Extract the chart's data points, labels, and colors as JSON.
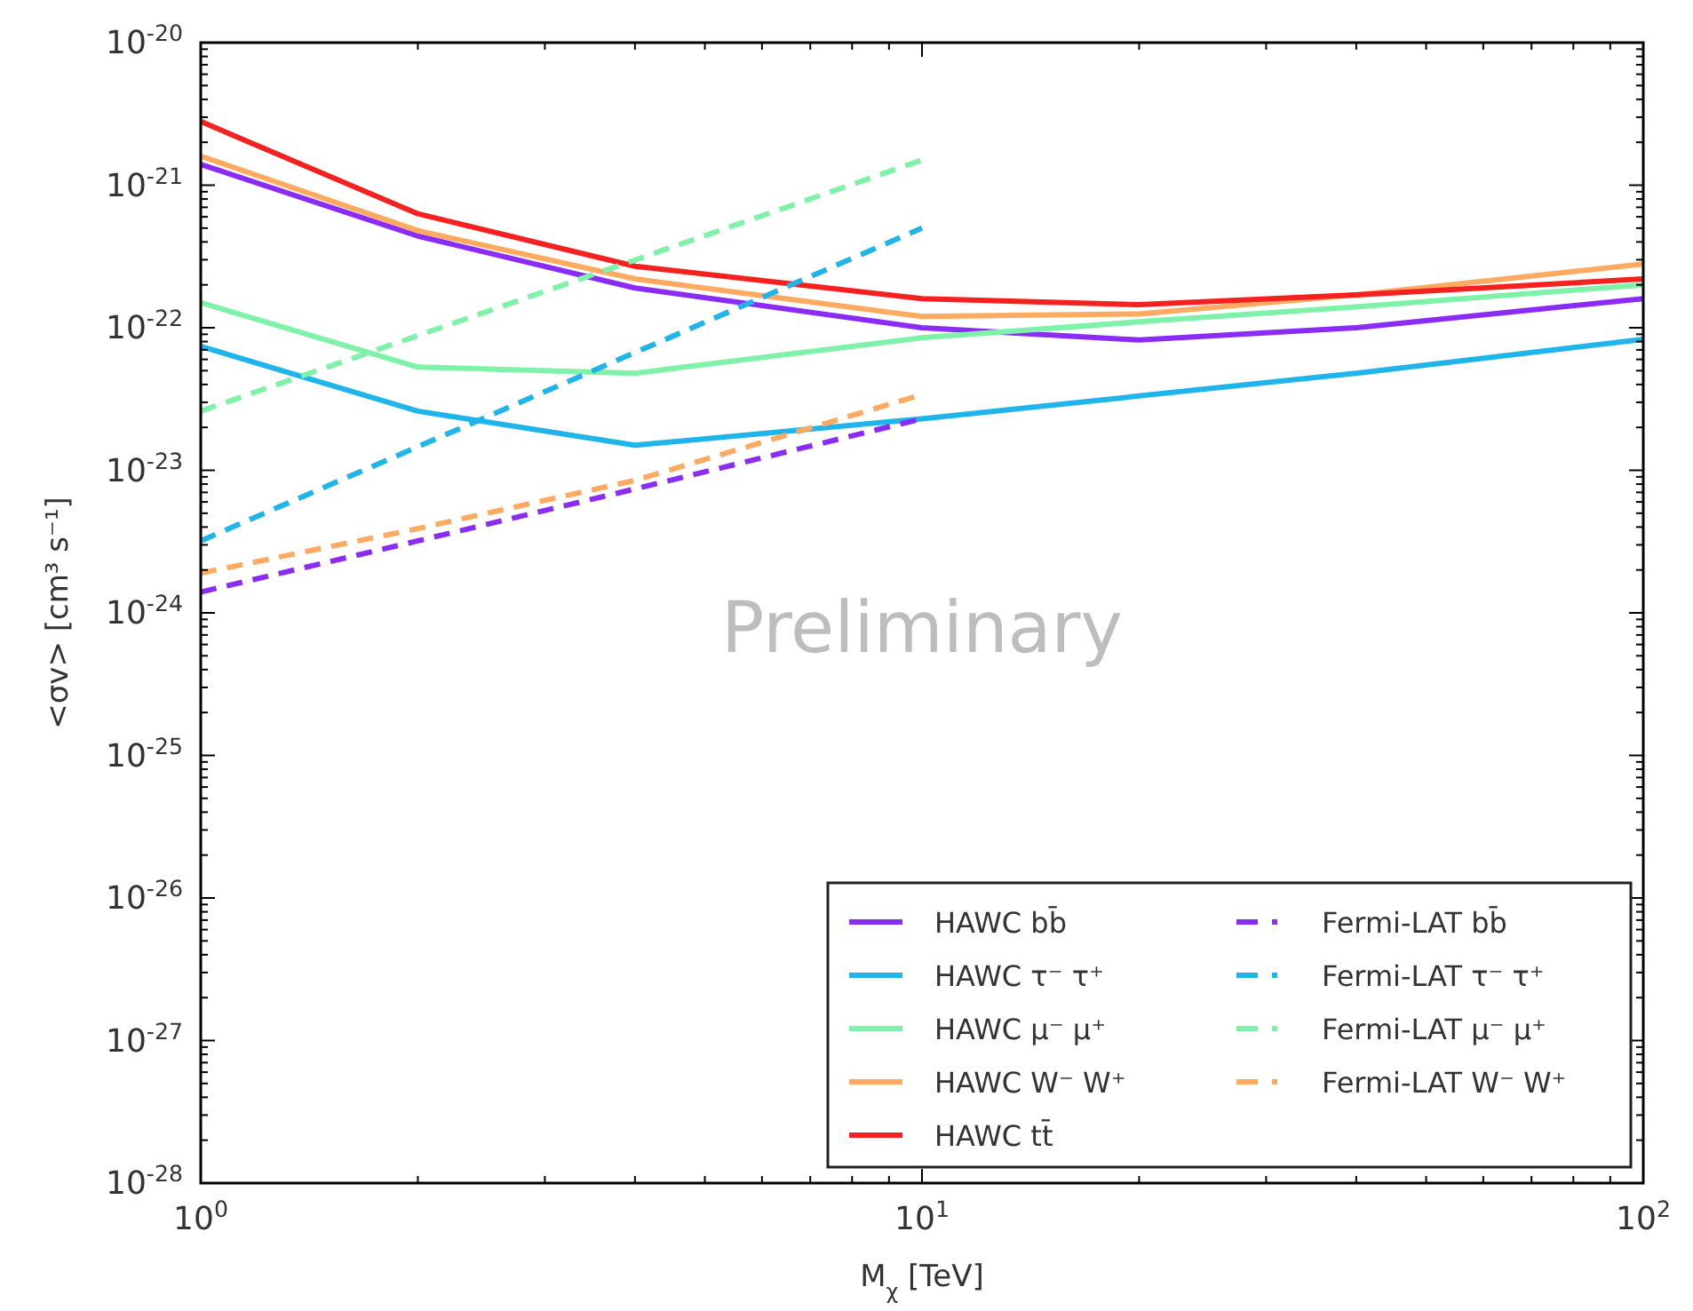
{
  "chart_data": {
    "type": "line",
    "xlabel": "M$_{χ}$ [TeV]",
    "ylabel": "<σv> [cm³ s⁻¹]",
    "log": "xy",
    "grid": false,
    "legend": "bottom right",
    "xlim": [
      1,
      100
    ],
    "xticks": [
      {
        "value": 1,
        "label": "10$^{0}$"
      },
      {
        "value": 10,
        "label": "10$^{1}$"
      },
      {
        "value": 100,
        "label": "10$^{2}$"
      }
    ],
    "ylim": [
      1e-28,
      1e-20
    ],
    "yticks": [
      {
        "value": 1e-28,
        "label": "10$^{-28}$"
      },
      {
        "value": 1e-27,
        "label": "10$^{-27}$"
      },
      {
        "value": 1e-26,
        "label": "10$^{-26}$"
      },
      {
        "value": 1e-25,
        "label": "10$^{-25}$"
      },
      {
        "value": 1e-24,
        "label": "10$^{-24}$"
      },
      {
        "value": 1e-23,
        "label": "10$^{-23}$"
      },
      {
        "value": 1e-22,
        "label": "10$^{-22}$"
      },
      {
        "value": 1e-21,
        "label": "10$^{-21}$"
      },
      {
        "value": 1e-20,
        "label": "10$^{-20}$"
      }
    ],
    "annotations": [
      "Preliminary"
    ],
    "series": [
      {
        "name": "HAWC bb̄",
        "color": "#8b2cf5",
        "line_style": "solid",
        "x": [
          1,
          2,
          4,
          10,
          20,
          40,
          100
        ],
        "values": [
          1.4e-21,
          4.4e-22,
          1.9e-22,
          1e-22,
          8.2e-23,
          1e-22,
          1.6e-22
        ]
      },
      {
        "name": "HAWC τ⁻ τ⁺",
        "color": "#1fb4ea",
        "line_style": "solid",
        "x": [
          1,
          2,
          4,
          10,
          40,
          100
        ],
        "values": [
          7.4e-23,
          2.6e-23,
          1.5e-23,
          2.3e-23,
          4.8e-23,
          8.3e-23
        ]
      },
      {
        "name": "HAWC μ⁻ μ⁺",
        "color": "#7ef2a8",
        "line_style": "solid",
        "x": [
          1,
          2,
          4,
          10,
          20,
          40,
          100
        ],
        "values": [
          1.5e-22,
          5.3e-23,
          4.8e-23,
          8.5e-23,
          1.1e-22,
          1.4e-22,
          2e-22
        ]
      },
      {
        "name": "HAWC W⁻ W⁺",
        "color": "#ffaa60",
        "line_style": "solid",
        "x": [
          1,
          2,
          4,
          10,
          20,
          40,
          100
        ],
        "values": [
          1.6e-21,
          4.8e-22,
          2.2e-22,
          1.2e-22,
          1.25e-22,
          1.7e-22,
          2.8e-22
        ]
      },
      {
        "name": "HAWC tt̄",
        "color": "#f52020",
        "line_style": "solid",
        "x": [
          1,
          2,
          4,
          10,
          20,
          40,
          100
        ],
        "values": [
          2.8e-21,
          6.3e-22,
          2.7e-22,
          1.6e-22,
          1.45e-22,
          1.7e-22,
          2.2e-22
        ]
      },
      {
        "name": "Fermi-LAT bb̄",
        "color": "#8b2cf5",
        "line_style": "dashed",
        "x": [
          1,
          2,
          4,
          10
        ],
        "values": [
          1.4e-24,
          3.2e-24,
          7.4e-24,
          2.3e-23
        ]
      },
      {
        "name": "Fermi-LAT τ⁻ τ⁺",
        "color": "#1fb4ea",
        "line_style": "dashed",
        "x": [
          1,
          10
        ],
        "values": [
          3.2e-24,
          5e-22
        ]
      },
      {
        "name": "Fermi-LAT μ⁻ μ⁺",
        "color": "#7ef2a8",
        "line_style": "dashed",
        "x": [
          1,
          10
        ],
        "values": [
          2.6e-23,
          1.5e-21
        ]
      },
      {
        "name": "Fermi-LAT W⁻ W⁺",
        "color": "#ffaa60",
        "line_style": "dashed",
        "x": [
          1,
          2,
          4,
          10
        ],
        "values": [
          1.9e-24,
          3.9e-24,
          8.5e-24,
          3.4e-23
        ]
      }
    ]
  }
}
